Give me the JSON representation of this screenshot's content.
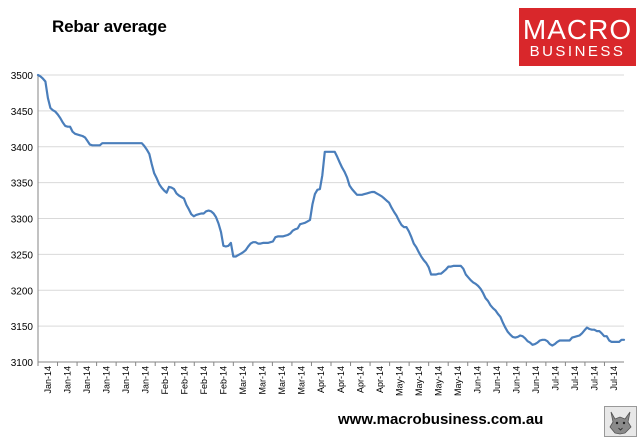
{
  "title": "Rebar average",
  "logo": {
    "line1": "MACRO",
    "line2": "BUSINESS",
    "color": "#d9272b"
  },
  "website": "www.macrobusiness.com.au",
  "mascot_icon": "wolf-icon",
  "chart_data": {
    "type": "line",
    "title": "Rebar average",
    "xlabel": "",
    "ylabel": "",
    "ylim": [
      3100,
      3500
    ],
    "yticks": [
      3100,
      3150,
      3200,
      3250,
      3300,
      3350,
      3400,
      3450,
      3500
    ],
    "grid": "horizontal",
    "line_color": "#4a7ebb",
    "xtick_labels": [
      "Jan-14",
      "Jan-14",
      "Jan-14",
      "Jan-14",
      "Jan-14",
      "Jan-14",
      "Feb-14",
      "Feb-14",
      "Feb-14",
      "Feb-14",
      "Mar-14",
      "Mar-14",
      "Mar-14",
      "Mar-14",
      "Apr-14",
      "Apr-14",
      "Apr-14",
      "Apr-14",
      "May-14",
      "May-14",
      "May-14",
      "May-14",
      "Jun-14",
      "Jun-14",
      "Jun-14",
      "Jun-14",
      "Jul-14",
      "Jul-14",
      "Jul-14",
      "Jul-14"
    ],
    "series": [
      {
        "values": [
          3500,
          3498,
          3495,
          3491,
          3468,
          3454,
          3451,
          3449,
          3445,
          3440,
          3434,
          3429,
          3428,
          3428,
          3421,
          3418,
          3417,
          3416,
          3415,
          3413,
          3408,
          3403,
          3402,
          3402,
          3402,
          3402,
          3405,
          3405,
          3405,
          3405,
          3405,
          3405,
          3405,
          3405,
          3405,
          3405,
          3405,
          3405,
          3405,
          3405,
          3405,
          3405,
          3405,
          3401,
          3396,
          3390,
          3376,
          3363,
          3356,
          3348,
          3343,
          3339,
          3336,
          3344,
          3343,
          3341,
          3335,
          3332,
          3330,
          3328,
          3319,
          3313,
          3306,
          3303,
          3305,
          3306,
          3307,
          3307,
          3310,
          3311,
          3310,
          3307,
          3302,
          3293,
          3281,
          3262,
          3261,
          3262,
          3266,
          3247,
          3247,
          3249,
          3251,
          3253,
          3256,
          3261,
          3265,
          3267,
          3267,
          3265,
          3265,
          3266,
          3266,
          3266,
          3267,
          3268,
          3274,
          3275,
          3275,
          3275,
          3276,
          3277,
          3279,
          3283,
          3285,
          3286,
          3292,
          3293,
          3294,
          3296,
          3298,
          3320,
          3334,
          3340,
          3341,
          3360,
          3393,
          3393,
          3393,
          3393,
          3393,
          3386,
          3378,
          3371,
          3365,
          3357,
          3346,
          3341,
          3337,
          3333,
          3333,
          3333,
          3334,
          3335,
          3336,
          3337,
          3337,
          3335,
          3333,
          3331,
          3328,
          3325,
          3322,
          3315,
          3309,
          3304,
          3297,
          3291,
          3288,
          3288,
          3282,
          3274,
          3265,
          3260,
          3253,
          3247,
          3242,
          3238,
          3232,
          3222,
          3222,
          3222,
          3223,
          3223,
          3226,
          3229,
          3233,
          3233,
          3234,
          3234,
          3234,
          3234,
          3230,
          3222,
          3218,
          3214,
          3211,
          3209,
          3206,
          3202,
          3196,
          3189,
          3185,
          3179,
          3175,
          3172,
          3167,
          3163,
          3155,
          3148,
          3142,
          3138,
          3135,
          3134,
          3135,
          3137,
          3136,
          3133,
          3129,
          3127,
          3124,
          3125,
          3127,
          3130,
          3131,
          3131,
          3129,
          3125,
          3123,
          3125,
          3128,
          3130,
          3130,
          3130,
          3130,
          3130,
          3134,
          3135,
          3136,
          3137,
          3140,
          3144,
          3148,
          3146,
          3145,
          3145,
          3143,
          3143,
          3140,
          3136,
          3136,
          3130,
          3128,
          3128,
          3128,
          3128,
          3131,
          3131
        ]
      }
    ]
  }
}
